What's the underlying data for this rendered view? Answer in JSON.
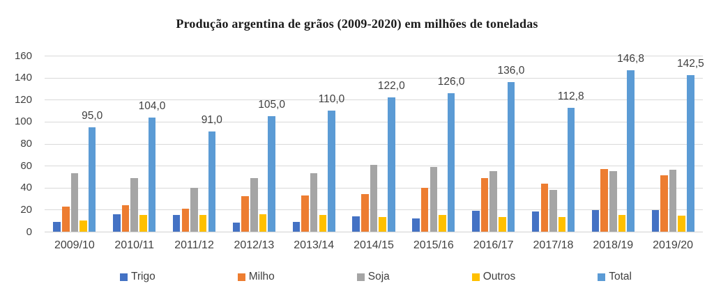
{
  "title": "Produção argentina de grãos (2009-2020) em milhões de toneladas",
  "chart_data": {
    "type": "bar",
    "title": "Produção argentina de grãos (2009-2020) em milhões de toneladas",
    "unit": "milhões de toneladas",
    "categories": [
      "2009/10",
      "2010/11",
      "2011/12",
      "2012/13",
      "2013/14",
      "2014/15",
      "2015/16",
      "2016/17",
      "2017/18",
      "2018/19",
      "2019/20"
    ],
    "series": [
      {
        "name": "Trigo",
        "color": "#4472C4",
        "values": [
          9,
          16,
          15,
          8,
          9,
          14,
          12,
          19,
          18.5,
          19.5,
          19.8
        ]
      },
      {
        "name": "Milho",
        "color": "#ED7D31",
        "values": [
          23,
          24,
          21,
          32,
          33,
          34,
          40,
          49,
          43.5,
          57,
          51.5
        ]
      },
      {
        "name": "Soja",
        "color": "#A5A5A5",
        "values": [
          53,
          49,
          40,
          49,
          53,
          61,
          59,
          55,
          37.8,
          55.3,
          56.5
        ]
      },
      {
        "name": "Outros",
        "color": "#FFC000",
        "values": [
          10,
          15,
          15,
          16,
          15,
          13,
          15,
          13,
          13,
          15,
          14.7
        ]
      },
      {
        "name": "Total",
        "color": "#5B9BD5",
        "values": [
          95,
          104,
          91,
          105,
          110,
          122,
          126,
          136,
          112.8,
          146.8,
          142.5
        ],
        "labels": [
          "95,0",
          "104,0",
          "91,0",
          "105,0",
          "110,0",
          "122,0",
          "126,0",
          "136,0",
          "112,8",
          "146,8",
          "142,5"
        ]
      }
    ],
    "y_axis": {
      "min": 0,
      "max": 160,
      "step": 20,
      "ticks": [
        "0",
        "20",
        "40",
        "60",
        "80",
        "100",
        "120",
        "140",
        "160"
      ]
    },
    "x_axis": {
      "label": ""
    },
    "legend": {
      "position": "bottom",
      "entries": [
        "Trigo",
        "Milho",
        "Soja",
        "Outros",
        "Total"
      ]
    },
    "grid": true,
    "colors": {
      "gridline": "#d9d9d9",
      "axis_text": "#3f3f3f",
      "title_text": "#1a1a1a",
      "background": "#ffffff"
    }
  }
}
